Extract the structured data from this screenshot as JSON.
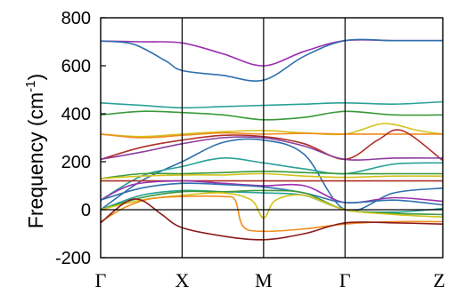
{
  "chart_data": {
    "type": "line",
    "title": "",
    "xlabel": "",
    "ylabel": "Frequency (cm-1)",
    "ylabel_main": "Frequency (cm",
    "ylabel_sup": "-1",
    "ylabel_close": ")",
    "ylim": [
      -200,
      800
    ],
    "yticks": [
      -200,
      0,
      200,
      400,
      600,
      800
    ],
    "ytick_labels": [
      "-200",
      "0",
      "200",
      "400",
      "600",
      "800"
    ],
    "xlim": [
      0,
      4.2
    ],
    "kpoints": [
      {
        "label": "Γ",
        "x": 0
      },
      {
        "label": "X",
        "x": 1
      },
      {
        "label": "M",
        "x": 2
      },
      {
        "label": "Γ",
        "x": 3.0
      },
      {
        "label": "Z",
        "x": 4.2
      }
    ],
    "grid": false,
    "zero_line": true,
    "series": [
      {
        "color": "#9b2fae",
        "points": [
          [
            0,
            703
          ],
          [
            0.5,
            700
          ],
          [
            1,
            695
          ],
          [
            1.5,
            650
          ],
          [
            2,
            600
          ],
          [
            2.5,
            660
          ],
          [
            3,
            705
          ],
          [
            3.6,
            705
          ],
          [
            4.2,
            705
          ]
        ]
      },
      {
        "color": "#2f6fae",
        "points": [
          [
            0,
            703
          ],
          [
            0.4,
            690
          ],
          [
            0.8,
            620
          ],
          [
            1,
            580
          ],
          [
            1.5,
            560
          ],
          [
            2,
            540
          ],
          [
            2.5,
            640
          ],
          [
            3,
            705
          ],
          [
            3.6,
            705
          ],
          [
            4.2,
            705
          ]
        ]
      },
      {
        "color": "#2aa198",
        "points": [
          [
            0,
            445
          ],
          [
            0.5,
            435
          ],
          [
            1,
            425
          ],
          [
            1.5,
            430
          ],
          [
            2,
            435
          ],
          [
            2.5,
            440
          ],
          [
            3,
            445
          ],
          [
            3.6,
            440
          ],
          [
            4.2,
            450
          ]
        ]
      },
      {
        "color": "#3a9a3a",
        "points": [
          [
            0,
            395
          ],
          [
            0.5,
            410
          ],
          [
            1,
            405
          ],
          [
            1.5,
            395
          ],
          [
            2,
            375
          ],
          [
            2.5,
            385
          ],
          [
            3,
            410
          ],
          [
            3.6,
            395
          ],
          [
            4.2,
            395
          ]
        ]
      },
      {
        "color": "#d4c21a",
        "points": [
          [
            0,
            315
          ],
          [
            0.5,
            305
          ],
          [
            1,
            315
          ],
          [
            1.5,
            325
          ],
          [
            2,
            330
          ],
          [
            2.5,
            320
          ],
          [
            3,
            315
          ],
          [
            3.4,
            355
          ],
          [
            3.6,
            355
          ],
          [
            3.9,
            330
          ],
          [
            4.2,
            315
          ]
        ]
      },
      {
        "color": "#f08c1c",
        "points": [
          [
            0,
            315
          ],
          [
            0.5,
            300
          ],
          [
            1,
            310
          ],
          [
            1.5,
            320
          ],
          [
            2,
            315
          ],
          [
            2.5,
            318
          ],
          [
            3,
            315
          ],
          [
            3.6,
            315
          ],
          [
            4.2,
            315
          ]
        ]
      },
      {
        "color": "#b0302a",
        "points": [
          [
            0,
            210
          ],
          [
            0.5,
            260
          ],
          [
            1,
            290
          ],
          [
            1.5,
            310
          ],
          [
            2,
            305
          ],
          [
            2.5,
            275
          ],
          [
            3,
            210
          ],
          [
            3.4,
            290
          ],
          [
            3.7,
            330
          ],
          [
            4.2,
            205
          ]
        ]
      },
      {
        "color": "#8b3c9c",
        "points": [
          [
            0,
            210
          ],
          [
            0.5,
            240
          ],
          [
            1,
            275
          ],
          [
            1.5,
            300
          ],
          [
            2,
            300
          ],
          [
            2.5,
            265
          ],
          [
            3,
            210
          ],
          [
            3.6,
            215
          ],
          [
            4.2,
            215
          ]
        ]
      },
      {
        "color": "#2f6fae",
        "points": [
          [
            0,
            0
          ],
          [
            0.5,
            120
          ],
          [
            1,
            200
          ],
          [
            1.5,
            280
          ],
          [
            2,
            290
          ],
          [
            2.5,
            230
          ],
          [
            3,
            0
          ],
          [
            3.6,
            70
          ],
          [
            4.2,
            90
          ]
        ]
      },
      {
        "color": "#2aa198",
        "points": [
          [
            0,
            40
          ],
          [
            0.5,
            140
          ],
          [
            1,
            180
          ],
          [
            1.5,
            215
          ],
          [
            2,
            195
          ],
          [
            2.5,
            170
          ],
          [
            3,
            150
          ],
          [
            3.6,
            190
          ],
          [
            4.2,
            195
          ]
        ]
      },
      {
        "color": "#3a9a3a",
        "points": [
          [
            0,
            130
          ],
          [
            0.5,
            150
          ],
          [
            1,
            150
          ],
          [
            1.5,
            155
          ],
          [
            2,
            160
          ],
          [
            2.5,
            155
          ],
          [
            3,
            150
          ],
          [
            3.6,
            150
          ],
          [
            4.2,
            150
          ]
        ]
      },
      {
        "color": "#d4c21a",
        "points": [
          [
            0,
            130
          ],
          [
            0.5,
            140
          ],
          [
            1,
            145
          ],
          [
            1.5,
            145
          ],
          [
            2,
            150
          ],
          [
            2.5,
            140
          ],
          [
            3,
            135
          ],
          [
            3.6,
            140
          ],
          [
            4.2,
            140
          ]
        ]
      },
      {
        "color": "#b0302a",
        "points": [
          [
            0,
            120
          ],
          [
            0.5,
            120
          ],
          [
            1,
            120
          ],
          [
            1.5,
            120
          ],
          [
            2,
            120
          ],
          [
            2.5,
            120
          ],
          [
            3,
            120
          ],
          [
            3.6,
            120
          ],
          [
            4.2,
            120
          ]
        ]
      },
      {
        "color": "#9b2fae",
        "points": [
          [
            0,
            40
          ],
          [
            0.4,
            105
          ],
          [
            1,
            120
          ],
          [
            1.5,
            110
          ],
          [
            2,
            100
          ],
          [
            2.5,
            100
          ],
          [
            3,
            30
          ],
          [
            3.6,
            50
          ],
          [
            4.2,
            35
          ]
        ]
      },
      {
        "color": "#2f6fae",
        "points": [
          [
            0,
            40
          ],
          [
            0.5,
            90
          ],
          [
            1,
            110
          ],
          [
            1.5,
            105
          ],
          [
            2,
            95
          ],
          [
            2.5,
            70
          ],
          [
            3,
            30
          ],
          [
            3.6,
            40
          ],
          [
            4.2,
            20
          ]
        ]
      },
      {
        "color": "#2aa198",
        "points": [
          [
            0,
            0
          ],
          [
            0.5,
            60
          ],
          [
            1,
            80
          ],
          [
            1.5,
            75
          ],
          [
            2,
            70
          ],
          [
            2.5,
            60
          ],
          [
            3,
            0
          ],
          [
            3.6,
            -10
          ],
          [
            4.2,
            5
          ]
        ]
      },
      {
        "color": "#3a9a3a",
        "points": [
          [
            0,
            0
          ],
          [
            0.5,
            50
          ],
          [
            1,
            75
          ],
          [
            1.5,
            75
          ],
          [
            2,
            80
          ],
          [
            2.5,
            70
          ],
          [
            3,
            0
          ],
          [
            3.6,
            -15
          ],
          [
            4.2,
            -20
          ]
        ]
      },
      {
        "color": "#d4c21a",
        "points": [
          [
            0,
            0
          ],
          [
            0.5,
            40
          ],
          [
            1,
            60
          ],
          [
            1.5,
            70
          ],
          [
            1.85,
            40
          ],
          [
            2,
            -35
          ],
          [
            2.15,
            40
          ],
          [
            2.5,
            60
          ],
          [
            3,
            0
          ],
          [
            3.6,
            -20
          ],
          [
            4.2,
            -30
          ]
        ]
      },
      {
        "color": "#f08c1c",
        "points": [
          [
            0,
            -50
          ],
          [
            0.3,
            10
          ],
          [
            0.6,
            45
          ],
          [
            1,
            55
          ],
          [
            1.5,
            55
          ],
          [
            1.65,
            40
          ],
          [
            1.75,
            -70
          ],
          [
            2,
            -90
          ],
          [
            2.5,
            -80
          ],
          [
            3,
            -60
          ],
          [
            3.6,
            -50
          ],
          [
            4.2,
            -50
          ]
        ]
      },
      {
        "color": "#8b1a1a",
        "points": [
          [
            0,
            -55
          ],
          [
            0.3,
            30
          ],
          [
            0.5,
            40
          ],
          [
            0.75,
            -20
          ],
          [
            1,
            -75
          ],
          [
            1.5,
            -110
          ],
          [
            2,
            -125
          ],
          [
            2.5,
            -100
          ],
          [
            3,
            -55
          ],
          [
            3.6,
            -55
          ],
          [
            4.2,
            -60
          ]
        ]
      }
    ]
  }
}
